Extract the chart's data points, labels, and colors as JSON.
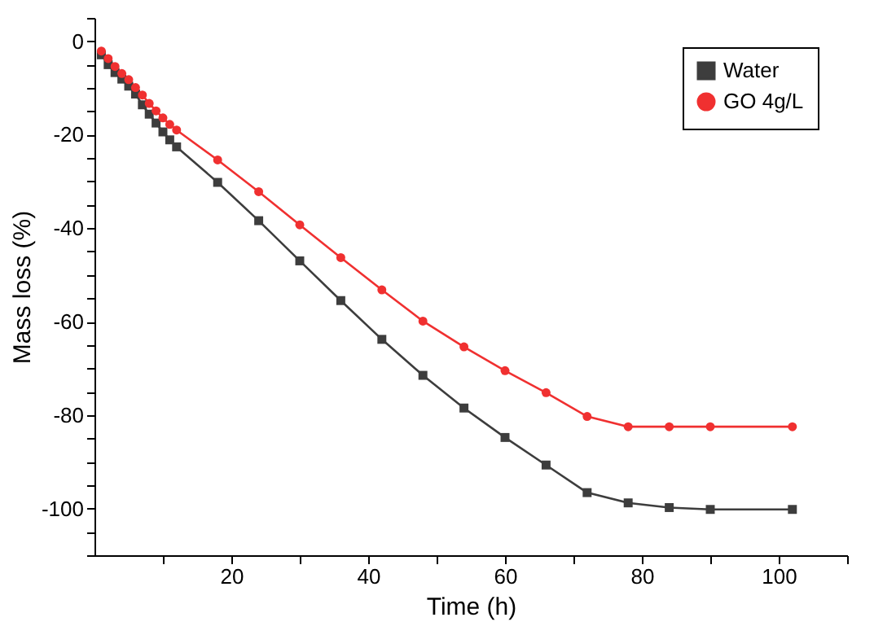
{
  "chart_data": {
    "type": "line",
    "xlabel": "Time (h)",
    "ylabel": "Mass loss (%)",
    "xlim": [
      0,
      110
    ],
    "ylim": [
      -110,
      5
    ],
    "xticks": [
      {
        "value": 10,
        "label": null
      },
      20,
      {
        "value": 30,
        "label": null
      },
      40,
      {
        "value": 50,
        "label": null
      },
      60,
      {
        "value": 70,
        "label": null
      },
      80,
      {
        "value": 90,
        "label": null
      },
      100,
      {
        "value": 110,
        "label": null
      }
    ],
    "yticks": [
      {
        "value": -110,
        "label": null
      },
      {
        "value": -105,
        "label": null
      },
      -100,
      {
        "value": -95,
        "label": null
      },
      {
        "value": -90,
        "label": null
      },
      {
        "value": -85,
        "label": null
      },
      -80,
      {
        "value": -75,
        "label": null
      },
      {
        "value": -70,
        "label": null
      },
      {
        "value": -65,
        "label": null
      },
      -60,
      {
        "value": -55,
        "label": null
      },
      {
        "value": -50,
        "label": null
      },
      {
        "value": -45,
        "label": null
      },
      -40,
      {
        "value": -35,
        "label": null
      },
      {
        "value": -30,
        "label": null
      },
      {
        "value": -25,
        "label": null
      },
      -20,
      {
        "value": -15,
        "label": null
      },
      {
        "value": -10,
        "label": null
      },
      {
        "value": -5,
        "label": null
      },
      0,
      {
        "value": 5,
        "label": null
      }
    ],
    "x": [
      1,
      2,
      3,
      4,
      5,
      6,
      7,
      8,
      9,
      10,
      11,
      12,
      18,
      24,
      30,
      36,
      42,
      48,
      54,
      60,
      66,
      72,
      78,
      84,
      90,
      102
    ],
    "grid": false,
    "legend": "top right",
    "line_style": "solid",
    "series": [
      {
        "name": "Water",
        "color": "#3d3d3d",
        "marker": "square",
        "values": [
          -2.9,
          -5.0,
          -6.7,
          -8.1,
          -9.6,
          -11.3,
          -13.6,
          -15.6,
          -17.5,
          -19.4,
          -21.1,
          -22.6,
          -30.2,
          -38.4,
          -47.0,
          -55.5,
          -63.8,
          -71.5,
          -78.5,
          -84.8,
          -90.7,
          -96.6,
          -98.8,
          -99.8,
          -100.2,
          -100.2
        ]
      },
      {
        "name": "GO 4g/L",
        "color": "#f03030",
        "marker": "circle",
        "values": [
          -2.1,
          -3.7,
          -5.4,
          -6.9,
          -8.2,
          -9.9,
          -11.5,
          -13.3,
          -14.9,
          -16.4,
          -17.8,
          -19.0,
          -25.4,
          -32.2,
          -39.3,
          -46.3,
          -53.2,
          -59.9,
          -65.4,
          -70.5,
          -75.2,
          -80.3,
          -82.5,
          -82.5,
          -82.5,
          -82.5
        ]
      }
    ]
  }
}
